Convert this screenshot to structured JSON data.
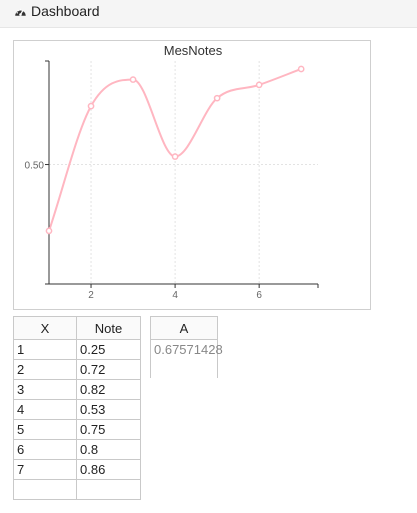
{
  "header": {
    "title": "Dashboard",
    "icon": "tachometer-icon"
  },
  "chart_data": {
    "type": "line",
    "title": "MesNotes",
    "x": [
      1,
      2,
      3,
      4,
      5,
      6,
      7
    ],
    "series": [
      {
        "values": [
          0.25,
          0.72,
          0.82,
          0.53,
          0.75,
          0.8,
          0.86
        ],
        "color": "#ffb6c1"
      }
    ],
    "xlim": [
      1,
      7.4
    ],
    "ylim": [
      0.05,
      0.89
    ],
    "xticks": [
      "2",
      "4",
      "6"
    ],
    "yticks": [
      "0.50"
    ],
    "grid": true
  },
  "table": {
    "columns": [
      "X",
      "Note"
    ],
    "rows": [
      [
        "1",
        "0.25"
      ],
      [
        "2",
        "0.72"
      ],
      [
        "3",
        "0.82"
      ],
      [
        "4",
        "0.53"
      ],
      [
        "5",
        "0.75"
      ],
      [
        "6",
        "0.8"
      ],
      [
        "7",
        "0.86"
      ],
      [
        "",
        ""
      ]
    ]
  },
  "table_a": {
    "column": "A",
    "value": "0.67571428"
  }
}
